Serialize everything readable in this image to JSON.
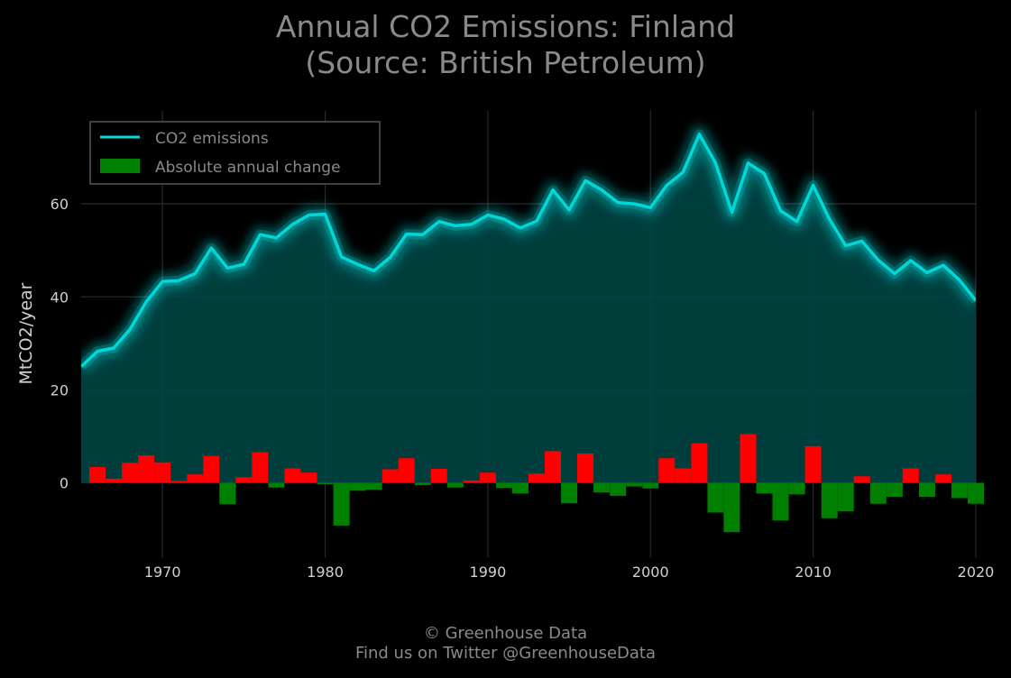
{
  "title_line1": "Annual CO2 Emissions: Finland",
  "title_line2": "(Source: British Petroleum)",
  "footer_line1": "© Greenhouse Data",
  "footer_line2": "Find us on Twitter @GreenhouseData",
  "colors": {
    "line": "#00d8d8",
    "fill": "#004545",
    "increase": "#ff0000",
    "decrease": "#008000",
    "text": "#8a8a8a",
    "tick": "#d0d0d0",
    "grid": "#2a2a2a"
  },
  "chart_data": {
    "type": "line",
    "title": "Annual CO2 Emissions: Finland\n(Source: British Petroleum)",
    "xlabel": "",
    "ylabel": "MtCO2/year",
    "xlim": [
      1965,
      2020
    ],
    "ylim": [
      -16,
      80
    ],
    "x_ticks": [
      1970,
      1980,
      1990,
      2000,
      2010,
      2020
    ],
    "y_ticks": [
      0,
      20,
      40,
      60
    ],
    "grid": true,
    "legend_position": "top-left",
    "x": [
      1965,
      1966,
      1967,
      1968,
      1969,
      1970,
      1971,
      1972,
      1973,
      1974,
      1975,
      1976,
      1977,
      1978,
      1979,
      1980,
      1981,
      1982,
      1983,
      1984,
      1985,
      1986,
      1987,
      1988,
      1989,
      1990,
      1991,
      1992,
      1993,
      1994,
      1995,
      1996,
      1997,
      1998,
      1999,
      2000,
      2001,
      2002,
      2003,
      2004,
      2005,
      2006,
      2007,
      2008,
      2009,
      2010,
      2011,
      2012,
      2013,
      2014,
      2015,
      2016,
      2017,
      2018,
      2019,
      2020
    ],
    "series": [
      {
        "name": "CO2 emissions",
        "kind": "line",
        "values": [
          25,
          28.3,
          29,
          33,
          38.9,
          43.3,
          43.5,
          45,
          50.5,
          46.2,
          47,
          53.4,
          52.7,
          55.6,
          57.6,
          57.8,
          48.6,
          47,
          45.6,
          48.5,
          53.5,
          53.4,
          56.2,
          55.3,
          55.6,
          57.6,
          56.7,
          54.8,
          56.3,
          63,
          58.7,
          65,
          63,
          60.3,
          60,
          59.2,
          64,
          66.8,
          75,
          68.8,
          58.2,
          68.8,
          66.5,
          58.5,
          56.2,
          64,
          56.7,
          51,
          52,
          47.9,
          45,
          47.8,
          45.2,
          46.8,
          43.6,
          39.2
        ]
      },
      {
        "name": "Absolute annual change",
        "kind": "bar",
        "values": [
          0,
          3.4,
          0.9,
          4.3,
          5.9,
          4.4,
          0.4,
          1.8,
          5.8,
          -4.6,
          1.2,
          6.6,
          -1,
          3.1,
          2.2,
          -0.3,
          -9.2,
          -1.7,
          -1.5,
          2.9,
          5.3,
          -0.5,
          3,
          -1,
          0.5,
          2.2,
          -1.1,
          -2.3,
          2,
          6.8,
          -4.4,
          6.3,
          -2.1,
          -2.8,
          -0.8,
          -1.2,
          5.3,
          3.1,
          8.5,
          -6.4,
          -10.6,
          10.5,
          -2.3,
          -8.1,
          -2.5,
          7.9,
          -7.6,
          -6.1,
          1.4,
          -4.5,
          -3,
          3.1,
          -3,
          1.8,
          -3.3,
          -4.5
        ]
      }
    ]
  }
}
